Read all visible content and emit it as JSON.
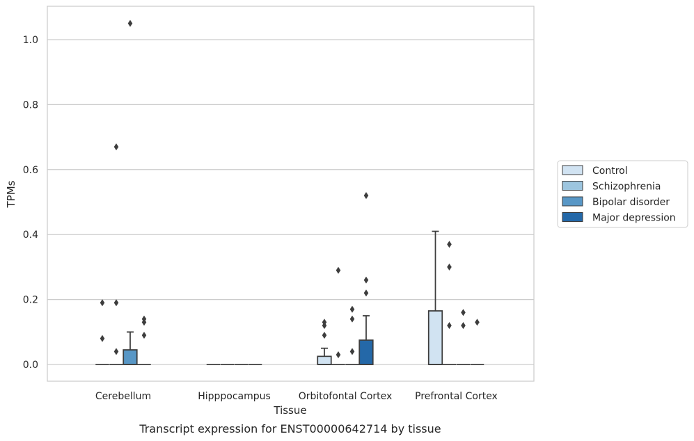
{
  "caption": "Transcript expression for ENST00000642714 by tissue",
  "chart_data": {
    "type": "box",
    "xlabel": "Tissue",
    "ylabel": "TPMs",
    "ylim": [
      -0.05,
      1.1
    ],
    "yticks": [
      "0.0",
      "0.2",
      "0.4",
      "0.6",
      "0.8",
      "1.0"
    ],
    "grid": "horizontal",
    "legend_position": "right",
    "categories": [
      "Cerebellum",
      "Hipppocampus",
      "Orbitofontal Cortex",
      "Prefrontal Cortex"
    ],
    "series": [
      {
        "name": "Control",
        "color": "#d1e3f2"
      },
      {
        "name": "Schizophrenia",
        "color": "#9cc5df"
      },
      {
        "name": "Bipolar disorder",
        "color": "#5897c6"
      },
      {
        "name": "Major depression",
        "color": "#2468a8"
      }
    ],
    "boxes": [
      {
        "category": "Cerebellum",
        "series": "Control",
        "q1": 0,
        "median": 0,
        "q3": 0,
        "whisker_low": 0,
        "whisker_high": 0,
        "outliers": [
          0.08,
          0.19
        ]
      },
      {
        "category": "Cerebellum",
        "series": "Schizophrenia",
        "q1": 0,
        "median": 0,
        "q3": 0,
        "whisker_low": 0,
        "whisker_high": 0,
        "outliers": [
          0.04,
          0.19,
          0.67
        ]
      },
      {
        "category": "Cerebellum",
        "series": "Bipolar disorder",
        "q1": 0,
        "median": 0,
        "q3": 0.045,
        "whisker_low": 0,
        "whisker_high": 0.1,
        "outliers": [
          1.05
        ]
      },
      {
        "category": "Cerebellum",
        "series": "Major depression",
        "q1": 0,
        "median": 0,
        "q3": 0,
        "whisker_low": 0,
        "whisker_high": 0,
        "outliers": [
          0.09,
          0.13,
          0.14
        ]
      },
      {
        "category": "Hipppocampus",
        "series": "Control",
        "q1": 0,
        "median": 0,
        "q3": 0,
        "whisker_low": 0,
        "whisker_high": 0,
        "outliers": []
      },
      {
        "category": "Hipppocampus",
        "series": "Schizophrenia",
        "q1": 0,
        "median": 0,
        "q3": 0,
        "whisker_low": 0,
        "whisker_high": 0,
        "outliers": []
      },
      {
        "category": "Hipppocampus",
        "series": "Bipolar disorder",
        "q1": 0,
        "median": 0,
        "q3": 0,
        "whisker_low": 0,
        "whisker_high": 0,
        "outliers": []
      },
      {
        "category": "Hipppocampus",
        "series": "Major depression",
        "q1": 0,
        "median": 0,
        "q3": 0,
        "whisker_low": 0,
        "whisker_high": 0,
        "outliers": []
      },
      {
        "category": "Orbitofontal Cortex",
        "series": "Control",
        "q1": 0,
        "median": 0,
        "q3": 0.025,
        "whisker_low": 0,
        "whisker_high": 0.05,
        "outliers": [
          0.09,
          0.12,
          0.13
        ]
      },
      {
        "category": "Orbitofontal Cortex",
        "series": "Schizophrenia",
        "q1": 0,
        "median": 0,
        "q3": 0,
        "whisker_low": 0,
        "whisker_high": 0,
        "outliers": [
          0.03,
          0.29
        ]
      },
      {
        "category": "Orbitofontal Cortex",
        "series": "Bipolar disorder",
        "q1": 0,
        "median": 0,
        "q3": 0,
        "whisker_low": 0,
        "whisker_high": 0,
        "outliers": [
          0.04,
          0.14,
          0.17
        ]
      },
      {
        "category": "Orbitofontal Cortex",
        "series": "Major depression",
        "q1": 0,
        "median": 0,
        "q3": 0.075,
        "whisker_low": 0,
        "whisker_high": 0.15,
        "outliers": [
          0.22,
          0.26,
          0.52
        ]
      },
      {
        "category": "Prefrontal Cortex",
        "series": "Control",
        "q1": 0,
        "median": 0,
        "q3": 0.165,
        "whisker_low": 0,
        "whisker_high": 0.41,
        "outliers": []
      },
      {
        "category": "Prefrontal Cortex",
        "series": "Schizophrenia",
        "q1": 0,
        "median": 0,
        "q3": 0,
        "whisker_low": 0,
        "whisker_high": 0,
        "outliers": [
          0.12,
          0.3,
          0.37
        ]
      },
      {
        "category": "Prefrontal Cortex",
        "series": "Bipolar disorder",
        "q1": 0,
        "median": 0,
        "q3": 0,
        "whisker_low": 0,
        "whisker_high": 0,
        "outliers": [
          0.12,
          0.16
        ]
      },
      {
        "category": "Prefrontal Cortex",
        "series": "Major depression",
        "q1": 0,
        "median": 0,
        "q3": 0,
        "whisker_low": 0,
        "whisker_high": 0,
        "outliers": [
          0.13
        ]
      }
    ]
  }
}
